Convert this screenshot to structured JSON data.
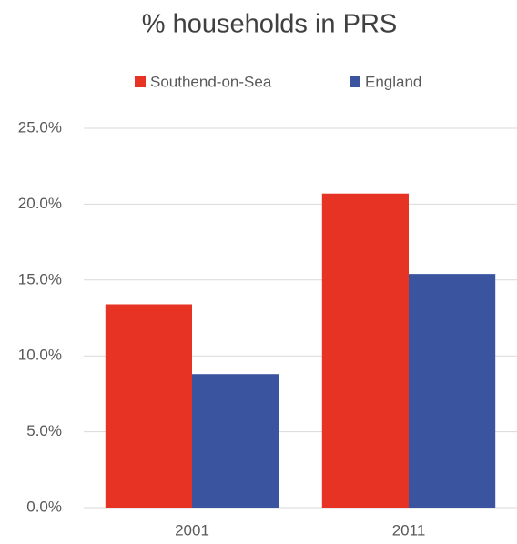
{
  "chart_data": {
    "type": "bar",
    "title": "% households in PRS",
    "categories": [
      "2001",
      "2011"
    ],
    "series": [
      {
        "name": "Southend-on-Sea",
        "color": "#e63323",
        "values": [
          13.4,
          20.7
        ]
      },
      {
        "name": "England",
        "color": "#3a54a0",
        "values": [
          8.8,
          15.4
        ]
      }
    ],
    "ylim": [
      0,
      25
    ],
    "yticks": [
      {
        "value": 0,
        "label": "0.0%"
      },
      {
        "value": 5,
        "label": "5.0%"
      },
      {
        "value": 10,
        "label": "10.0%"
      },
      {
        "value": 15,
        "label": "15.0%"
      },
      {
        "value": 20,
        "label": "20.0%"
      },
      {
        "value": 25,
        "label": "25.0%"
      }
    ],
    "grid": true,
    "legend": "top"
  }
}
